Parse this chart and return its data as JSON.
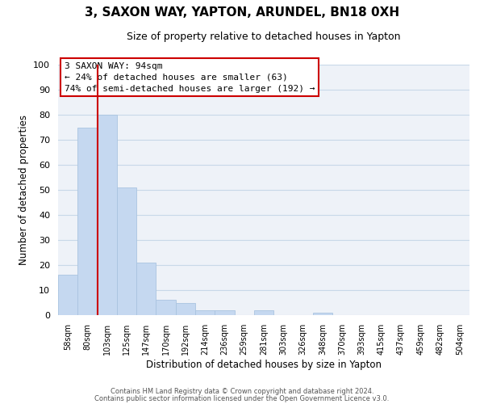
{
  "title": "3, SAXON WAY, YAPTON, ARUNDEL, BN18 0XH",
  "subtitle": "Size of property relative to detached houses in Yapton",
  "xlabel": "Distribution of detached houses by size in Yapton",
  "ylabel": "Number of detached properties",
  "bar_labels": [
    "58sqm",
    "80sqm",
    "103sqm",
    "125sqm",
    "147sqm",
    "170sqm",
    "192sqm",
    "214sqm",
    "236sqm",
    "259sqm",
    "281sqm",
    "303sqm",
    "326sqm",
    "348sqm",
    "370sqm",
    "393sqm",
    "415sqm",
    "437sqm",
    "459sqm",
    "482sqm",
    "504sqm"
  ],
  "bar_values": [
    16,
    75,
    80,
    51,
    21,
    6,
    5,
    2,
    2,
    0,
    2,
    0,
    0,
    1,
    0,
    0,
    0,
    0,
    0,
    0,
    0
  ],
  "bar_color": "#c5d8f0",
  "bar_edgecolor": "#aac4e0",
  "grid_color": "#c8d8e8",
  "vline_color": "#cc0000",
  "ylim": [
    0,
    100
  ],
  "yticks": [
    0,
    10,
    20,
    30,
    40,
    50,
    60,
    70,
    80,
    90,
    100
  ],
  "annotation_title": "3 SAXON WAY: 94sqm",
  "annotation_line1": "← 24% of detached houses are smaller (63)",
  "annotation_line2": "74% of semi-detached houses are larger (192) →",
  "annotation_box_color": "#ffffff",
  "annotation_box_edgecolor": "#cc0000",
  "footer1": "Contains HM Land Registry data © Crown copyright and database right 2024.",
  "footer2": "Contains public sector information licensed under the Open Government Licence v3.0.",
  "background_color": "#ffffff",
  "plot_bg_color": "#eef2f8"
}
